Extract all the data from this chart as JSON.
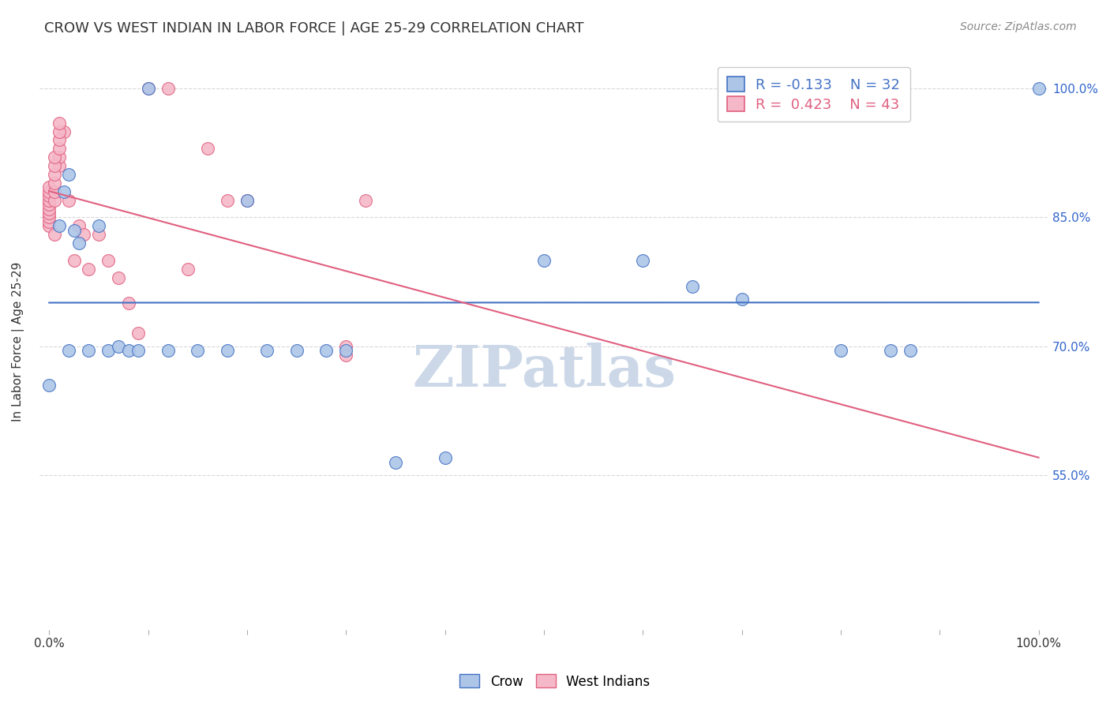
{
  "title": "CROW VS WEST INDIAN IN LABOR FORCE | AGE 25-29 CORRELATION CHART",
  "source": "Source: ZipAtlas.com",
  "ylabel": "In Labor Force | Age 25-29",
  "ytick_labels": [
    "100.0%",
    "85.0%",
    "70.0%",
    "55.0%"
  ],
  "ytick_values": [
    1.0,
    0.85,
    0.7,
    0.55
  ],
  "xlim": [
    -0.01,
    1.01
  ],
  "ylim": [
    0.37,
    1.04
  ],
  "crow_color": "#adc6e8",
  "west_indian_color": "#f5b8c8",
  "crow_line_color": "#4472c4",
  "west_indian_line_color": "#e06080",
  "legend_crow_R": "-0.133",
  "legend_crow_N": "32",
  "legend_west_R": "0.423",
  "legend_west_N": "43",
  "crow_scatter_x": [
    0.0,
    0.01,
    0.015,
    0.02,
    0.02,
    0.025,
    0.03,
    0.04,
    0.05,
    0.06,
    0.07,
    0.08,
    0.09,
    0.12,
    0.15,
    0.18,
    0.22,
    0.25,
    0.28,
    0.3,
    0.5,
    0.6,
    0.65,
    0.7,
    0.8,
    0.85,
    0.87,
    0.1,
    0.2,
    0.35,
    0.4,
    1.0
  ],
  "crow_scatter_y": [
    0.655,
    0.84,
    0.88,
    0.9,
    0.695,
    0.835,
    0.82,
    0.695,
    0.84,
    0.695,
    0.7,
    0.695,
    0.695,
    0.695,
    0.695,
    0.695,
    0.695,
    0.695,
    0.695,
    0.695,
    0.8,
    0.8,
    0.77,
    0.755,
    0.695,
    0.695,
    0.695,
    1.0,
    0.87,
    0.565,
    0.57,
    1.0
  ],
  "west_scatter_x": [
    0.0,
    0.0,
    0.0,
    0.0,
    0.0,
    0.0,
    0.0,
    0.0,
    0.0,
    0.0,
    0.005,
    0.005,
    0.01,
    0.01,
    0.015,
    0.02,
    0.025,
    0.03,
    0.035,
    0.04,
    0.05,
    0.06,
    0.07,
    0.08,
    0.09,
    0.1,
    0.12,
    0.14,
    0.16,
    0.18,
    0.2,
    0.3,
    0.3,
    0.32,
    0.005,
    0.005,
    0.005,
    0.005,
    0.005,
    0.01,
    0.01,
    0.01,
    0.01
  ],
  "west_scatter_y": [
    0.84,
    0.845,
    0.85,
    0.855,
    0.86,
    0.865,
    0.87,
    0.875,
    0.88,
    0.885,
    0.83,
    0.87,
    0.91,
    0.92,
    0.95,
    0.87,
    0.8,
    0.84,
    0.83,
    0.79,
    0.83,
    0.8,
    0.78,
    0.75,
    0.715,
    1.0,
    1.0,
    0.79,
    0.93,
    0.87,
    0.87,
    0.7,
    0.69,
    0.87,
    0.88,
    0.89,
    0.9,
    0.91,
    0.92,
    0.93,
    0.94,
    0.95,
    0.96
  ],
  "watermark": "ZIPatlas",
  "watermark_color": "#ccd8e8",
  "background_color": "#ffffff",
  "grid_color": "#d8d8d8"
}
